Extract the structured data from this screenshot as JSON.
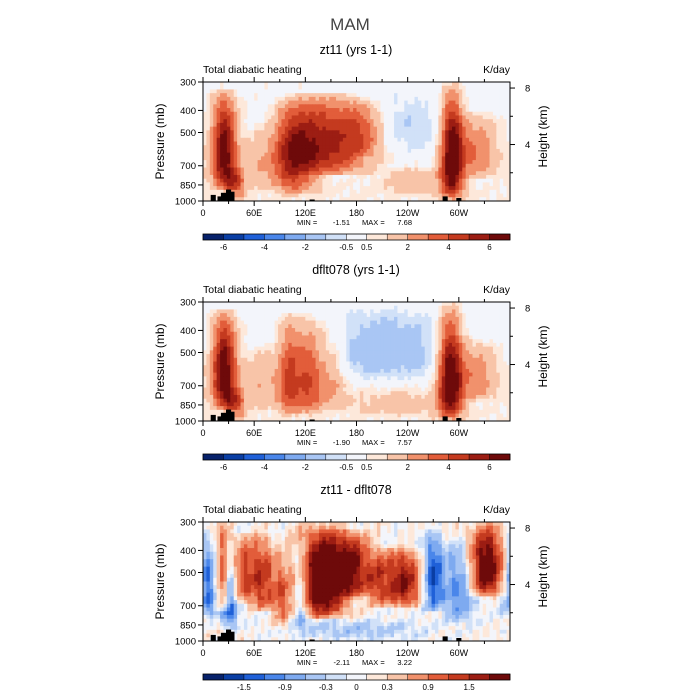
{
  "title": "MAM",
  "colors": {
    "full_scale": [
      "#08226b",
      "#0a3ea4",
      "#1f60d8",
      "#4a86ea",
      "#7eaaf0",
      "#a9c6f4",
      "#d1e1f8",
      "#f3f5fb",
      "#fde8da",
      "#f8c4a8",
      "#f1916c",
      "#e25d3a",
      "#c43a1f",
      "#9c1d13",
      "#6e0a0a"
    ],
    "diff_scale": [
      "#08226b",
      "#0a3ea4",
      "#1f60d8",
      "#4a86ea",
      "#7eaaf0",
      "#a9c6f4",
      "#d1e1f8",
      "#f3f5fb",
      "#fde8da",
      "#f8c4a8",
      "#f1916c",
      "#e25d3a",
      "#c43a1f",
      "#9c1d13",
      "#6e0a0a"
    ]
  },
  "chart_data": [
    {
      "type": "heatmap",
      "title": "zt11 (yrs 1-1)",
      "left_label": "Total diabatic heating",
      "right_label": "K/day",
      "ylabel": "Pressure (mb)",
      "y2label": "Height (km)",
      "x_ticks": [
        "0",
        "60E",
        "120E",
        "180",
        "120W",
        "60W"
      ],
      "x_tick_lons": [
        0,
        60,
        120,
        180,
        240,
        300
      ],
      "xlim": [
        0,
        360
      ],
      "y_ticks": [
        "300",
        "400",
        "500",
        "700",
        "850",
        "1000"
      ],
      "y_tick_values": [
        300,
        400,
        500,
        700,
        850,
        1000
      ],
      "ylim": [
        1000,
        300
      ],
      "y2_ticks": [
        "8",
        "4"
      ],
      "y2_tick_km": [
        8,
        4
      ],
      "stats": {
        "min_label": "MIN =",
        "min": "-1.51",
        "max_label": "MAX =",
        "max": "7.68"
      },
      "colorbar_labels": [
        "-6",
        "-4",
        "-2",
        "-0.5",
        "0.5",
        "2",
        "4",
        "6"
      ],
      "colorbar_levels": [
        -7,
        -6,
        -5,
        -4,
        -3,
        -2,
        -1,
        -0.5,
        0.5,
        1,
        2,
        3,
        4,
        5,
        6,
        7
      ],
      "field": {
        "scale": "full",
        "base": [
          [
            300,
            0.3
          ],
          [
            450,
            0.15
          ],
          [
            700,
            0.35
          ],
          [
            950,
            0.6
          ]
        ],
        "features": [
          {
            "lon": 25,
            "width": 10,
            "amp": 6.5,
            "p_top": 320,
            "p_bot": 900
          },
          {
            "lon": 38,
            "width": 8,
            "amp": 3.0,
            "p_top": 700,
            "p_bot": 1000
          },
          {
            "lon": 100,
            "width": 12,
            "amp": 3.5,
            "p_top": 350,
            "p_bot": 950
          },
          {
            "lon": 120,
            "width": 14,
            "amp": 2.5,
            "p_top": 330,
            "p_bot": 950
          },
          {
            "lon": 150,
            "width": 30,
            "amp": 5.0,
            "p_top": 330,
            "p_bot": 780
          },
          {
            "lon": 190,
            "width": 18,
            "amp": 2.5,
            "p_top": 350,
            "p_bot": 650
          },
          {
            "lon": 225,
            "width": 45,
            "amp": -1.2,
            "p_top": 300,
            "p_bot": 650
          },
          {
            "lon": 250,
            "width": 25,
            "amp": 1.2,
            "p_top": 700,
            "p_bot": 950
          },
          {
            "lon": 292,
            "width": 9,
            "amp": 7.0,
            "p_top": 300,
            "p_bot": 1000
          },
          {
            "lon": 320,
            "width": 18,
            "amp": 2.8,
            "p_top": 400,
            "p_bot": 800
          },
          {
            "lon": 70,
            "width": 15,
            "amp": 1.5,
            "p_top": 450,
            "p_bot": 900
          }
        ],
        "terrain": [
          [
            12,
            1000,
            940
          ],
          [
            20,
            1000,
            955
          ],
          [
            24,
            1000,
            920
          ],
          [
            30,
            1000,
            890
          ],
          [
            34,
            1000,
            910
          ],
          [
            128,
            1000,
            985
          ],
          [
            284,
            1000,
            955
          ],
          [
            300,
            1000,
            970
          ]
        ]
      }
    },
    {
      "type": "heatmap",
      "title": "dflt078 (yrs 1-1)",
      "left_label": "Total diabatic heating",
      "right_label": "K/day",
      "ylabel": "Pressure (mb)",
      "y2label": "Height (km)",
      "x_ticks": [
        "0",
        "60E",
        "120E",
        "180",
        "120W",
        "60W"
      ],
      "x_tick_lons": [
        0,
        60,
        120,
        180,
        240,
        300
      ],
      "xlim": [
        0,
        360
      ],
      "y_ticks": [
        "300",
        "400",
        "500",
        "700",
        "850",
        "1000"
      ],
      "y_tick_values": [
        300,
        400,
        500,
        700,
        850,
        1000
      ],
      "ylim": [
        1000,
        300
      ],
      "y2_ticks": [
        "8",
        "4"
      ],
      "y2_tick_km": [
        8,
        4
      ],
      "stats": {
        "min_label": "MIN =",
        "min": "-1.90",
        "max_label": "MAX =",
        "max": "7.57"
      },
      "colorbar_labels": [
        "-6",
        "-4",
        "-2",
        "-0.5",
        "0.5",
        "2",
        "4",
        "6"
      ],
      "colorbar_levels": [
        -7,
        -6,
        -5,
        -4,
        -3,
        -2,
        -1,
        -0.5,
        0.5,
        1,
        2,
        3,
        4,
        5,
        6,
        7
      ],
      "field": {
        "scale": "full",
        "base": [
          [
            300,
            0.25
          ],
          [
            450,
            0.1
          ],
          [
            700,
            0.35
          ],
          [
            950,
            0.6
          ]
        ],
        "features": [
          {
            "lon": 25,
            "width": 10,
            "amp": 6.8,
            "p_top": 320,
            "p_bot": 900
          },
          {
            "lon": 38,
            "width": 8,
            "amp": 3.0,
            "p_top": 700,
            "p_bot": 1000
          },
          {
            "lon": 102,
            "width": 10,
            "amp": 4.0,
            "p_top": 330,
            "p_bot": 950
          },
          {
            "lon": 125,
            "width": 10,
            "amp": 3.5,
            "p_top": 330,
            "p_bot": 950
          },
          {
            "lon": 150,
            "width": 12,
            "amp": 2.0,
            "p_top": 350,
            "p_bot": 900
          },
          {
            "lon": 215,
            "width": 55,
            "amp": -1.8,
            "p_top": 300,
            "p_bot": 680
          },
          {
            "lon": 230,
            "width": 40,
            "amp": 1.0,
            "p_top": 720,
            "p_bot": 950
          },
          {
            "lon": 290,
            "width": 10,
            "amp": 7.0,
            "p_top": 300,
            "p_bot": 1000
          },
          {
            "lon": 320,
            "width": 18,
            "amp": 2.5,
            "p_top": 420,
            "p_bot": 820
          },
          {
            "lon": 70,
            "width": 15,
            "amp": 1.5,
            "p_top": 450,
            "p_bot": 900
          }
        ],
        "terrain": [
          [
            12,
            1000,
            940
          ],
          [
            20,
            1000,
            955
          ],
          [
            24,
            1000,
            920
          ],
          [
            30,
            1000,
            890
          ],
          [
            34,
            1000,
            910
          ],
          [
            128,
            1000,
            985
          ],
          [
            284,
            1000,
            955
          ],
          [
            300,
            1000,
            970
          ]
        ]
      }
    },
    {
      "type": "heatmap",
      "title": "zt11 - dflt078",
      "left_label": "Total diabatic heating",
      "right_label": "K/day",
      "ylabel": "Pressure (mb)",
      "y2label": "Height (km)",
      "x_ticks": [
        "0",
        "60E",
        "120E",
        "180",
        "120W",
        "60W"
      ],
      "x_tick_lons": [
        0,
        60,
        120,
        180,
        240,
        300
      ],
      "xlim": [
        0,
        360
      ],
      "y_ticks": [
        "300",
        "400",
        "500",
        "700",
        "850",
        "1000"
      ],
      "y_tick_values": [
        300,
        400,
        500,
        700,
        850,
        1000
      ],
      "ylim": [
        1000,
        300
      ],
      "y2_ticks": [
        "8",
        "4"
      ],
      "y2_tick_km": [
        8,
        4
      ],
      "stats": {
        "min_label": "MIN =",
        "min": "-2.11",
        "max_label": "MAX =",
        "max": "3.22"
      },
      "colorbar_labels": [
        "-1.5",
        "-0.9",
        "-0.3",
        "0",
        "0.3",
        "0.9",
        "1.5"
      ],
      "colorbar_levels": [
        -2.1,
        -1.8,
        -1.5,
        -1.2,
        -0.9,
        -0.6,
        -0.3,
        -0.1,
        0.1,
        0.3,
        0.6,
        0.9,
        1.2,
        1.5,
        1.8,
        2.1
      ],
      "field": {
        "scale": "diff",
        "base": [
          [
            300,
            0.1
          ],
          [
            500,
            0.0
          ],
          [
            800,
            0.05
          ],
          [
            950,
            0.1
          ]
        ],
        "features": [
          {
            "lon": 8,
            "width": 10,
            "amp": -1.4,
            "p_top": 320,
            "p_bot": 800
          },
          {
            "lon": 22,
            "width": 7,
            "amp": 1.6,
            "p_top": 300,
            "p_bot": 750
          },
          {
            "lon": 32,
            "width": 6,
            "amp": -1.5,
            "p_top": 350,
            "p_bot": 900
          },
          {
            "lon": 45,
            "width": 12,
            "amp": 1.2,
            "p_top": 330,
            "p_bot": 700
          },
          {
            "lon": 70,
            "width": 10,
            "amp": 1.3,
            "p_top": 330,
            "p_bot": 750
          },
          {
            "lon": 92,
            "width": 8,
            "amp": 0.9,
            "p_top": 400,
            "p_bot": 900
          },
          {
            "lon": 115,
            "width": 6,
            "amp": -1.0,
            "p_top": 350,
            "p_bot": 900
          },
          {
            "lon": 140,
            "width": 20,
            "amp": 2.5,
            "p_top": 300,
            "p_bot": 800
          },
          {
            "lon": 175,
            "width": 15,
            "amp": 1.6,
            "p_top": 320,
            "p_bot": 650
          },
          {
            "lon": 205,
            "width": 10,
            "amp": 1.0,
            "p_top": 380,
            "p_bot": 720
          },
          {
            "lon": 235,
            "width": 15,
            "amp": 1.8,
            "p_top": 380,
            "p_bot": 720
          },
          {
            "lon": 270,
            "width": 8,
            "amp": -1.6,
            "p_top": 320,
            "p_bot": 750
          },
          {
            "lon": 300,
            "width": 12,
            "amp": -1.0,
            "p_top": 350,
            "p_bot": 850
          },
          {
            "lon": 333,
            "width": 14,
            "amp": 2.2,
            "p_top": 300,
            "p_bot": 650
          },
          {
            "lon": 180,
            "width": 60,
            "amp": -0.5,
            "p_top": 800,
            "p_bot": 1000
          }
        ],
        "terrain": [
          [
            12,
            1000,
            940
          ],
          [
            20,
            1000,
            955
          ],
          [
            24,
            1000,
            920
          ],
          [
            30,
            1000,
            890
          ],
          [
            34,
            1000,
            910
          ],
          [
            128,
            1000,
            985
          ],
          [
            284,
            1000,
            955
          ],
          [
            300,
            1000,
            970
          ]
        ]
      }
    }
  ]
}
